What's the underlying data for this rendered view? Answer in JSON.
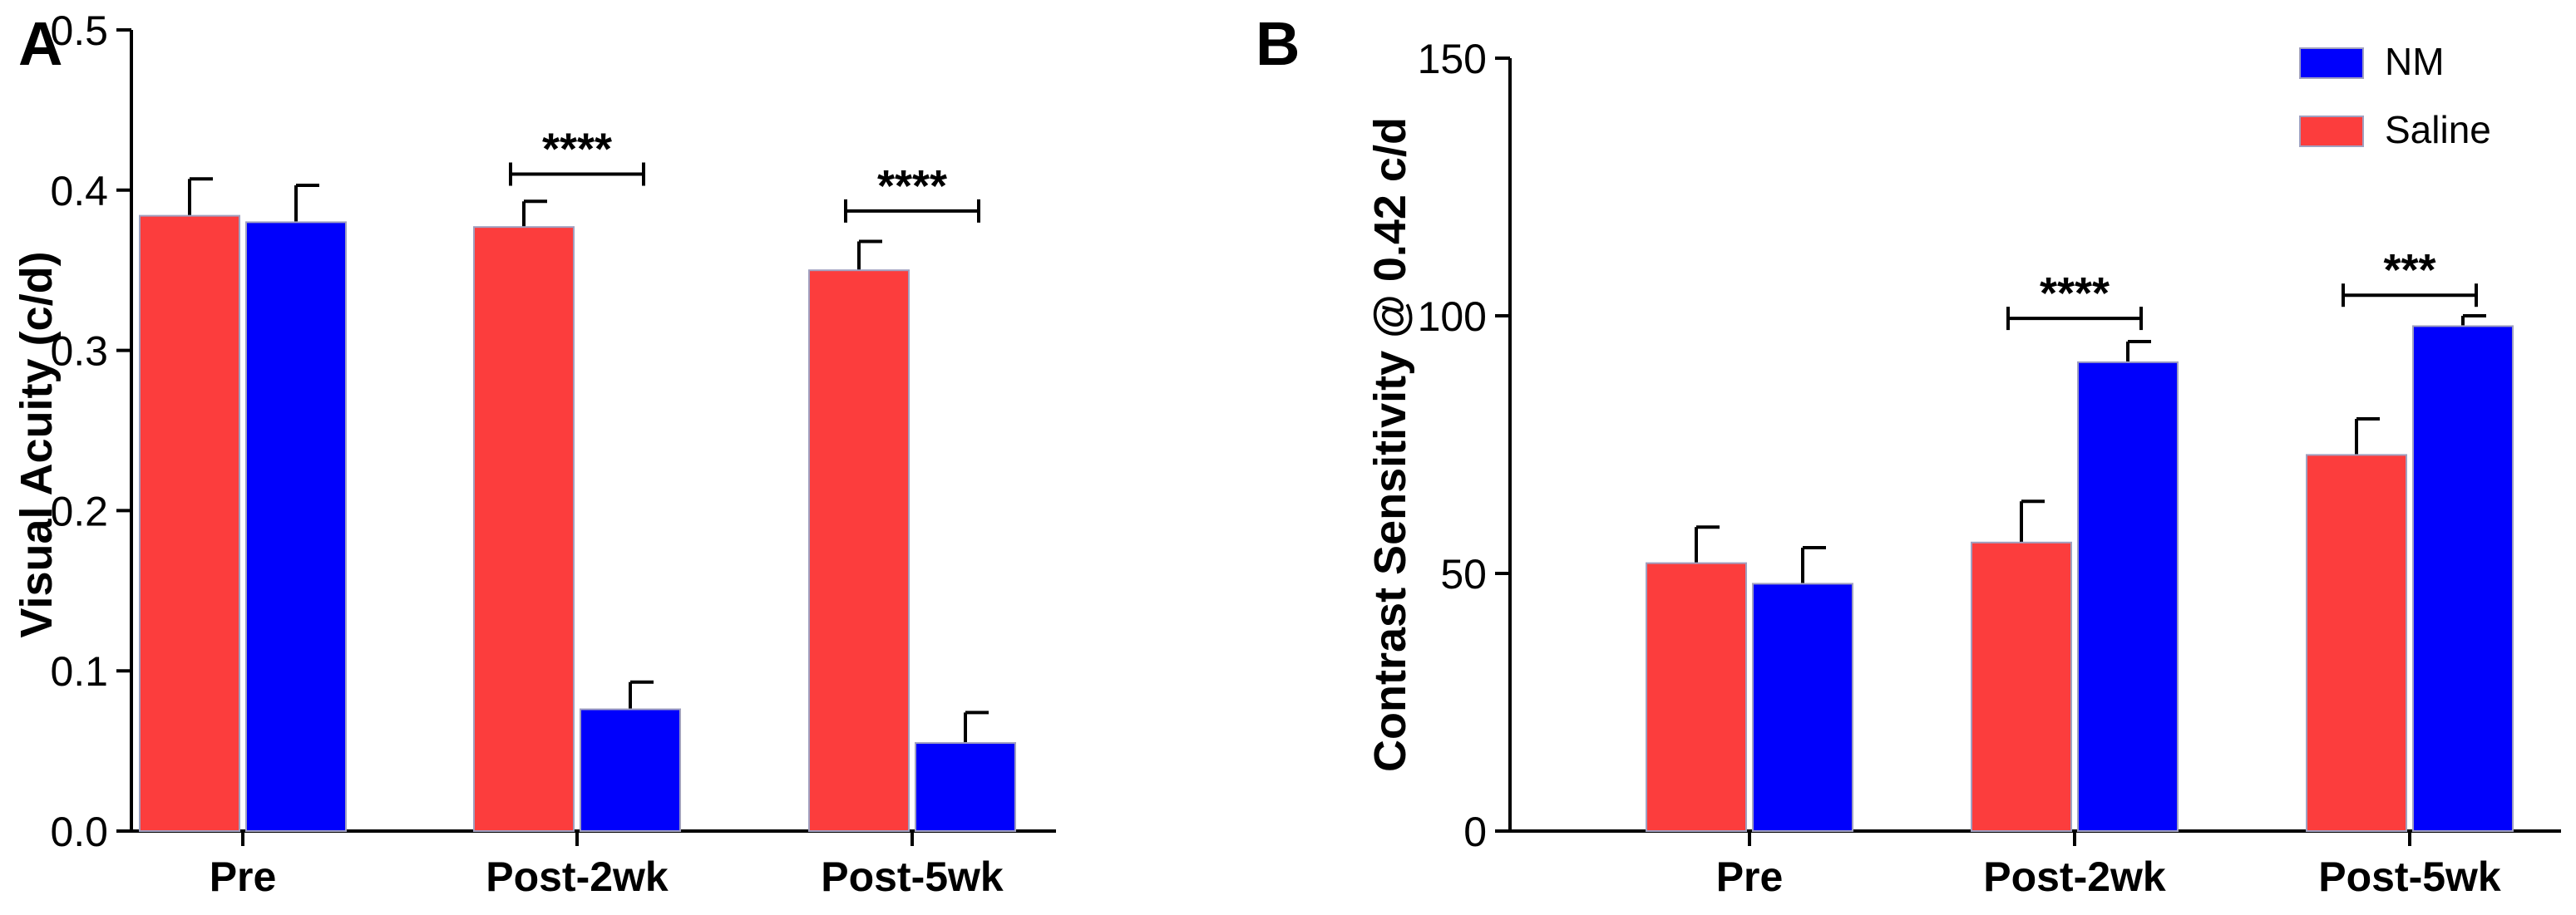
{
  "colors": {
    "Saline": "#fc3d3d",
    "NM": "#0000fc",
    "axis": "#000000"
  },
  "chart_data": [
    {
      "type": "bar",
      "panel_label": "A",
      "categories": [
        "Pre",
        "Post-2wk",
        "Post-5wk"
      ],
      "series": [
        {
          "name": "Saline",
          "values": [
            0.384,
            0.377,
            0.35
          ],
          "errors": [
            0.023,
            0.016,
            0.018
          ]
        },
        {
          "name": "NM",
          "values": [
            0.38,
            0.076,
            0.055
          ],
          "errors": [
            0.023,
            0.017,
            0.019
          ]
        }
      ],
      "xlabel": "",
      "ylabel": "Visual Acuity (c/d)",
      "ylim": [
        0,
        0.5
      ],
      "yticks": [
        "0.0",
        "0.1",
        "0.2",
        "0.3",
        "0.4",
        "0.5"
      ],
      "significance": [
        {
          "category": "Post-2wk",
          "label": "****",
          "level": 0.41
        },
        {
          "category": "Post-5wk",
          "label": "****",
          "level": 0.387
        }
      ],
      "grid": false
    },
    {
      "type": "bar",
      "panel_label": "B",
      "categories": [
        "Pre",
        "Post-2wk",
        "Post-5wk"
      ],
      "series": [
        {
          "name": "Saline",
          "values": [
            52,
            56,
            73
          ],
          "errors": [
            7,
            8,
            7
          ]
        },
        {
          "name": "NM",
          "values": [
            48,
            91,
            98
          ],
          "errors": [
            7,
            4,
            2
          ]
        }
      ],
      "xlabel": "",
      "ylabel": "Contrast Sensitivity @ 0.42 c/d",
      "ylim": [
        0,
        150
      ],
      "yticks": [
        "0",
        "50",
        "100",
        "150"
      ],
      "significance": [
        {
          "category": "Post-2wk",
          "label": "****",
          "level": 99.5
        },
        {
          "category": "Post-5wk",
          "label": "***",
          "level": 104
        }
      ],
      "legend": {
        "position": "top-right",
        "entries": [
          "NM",
          "Saline"
        ]
      },
      "grid": false
    }
  ]
}
